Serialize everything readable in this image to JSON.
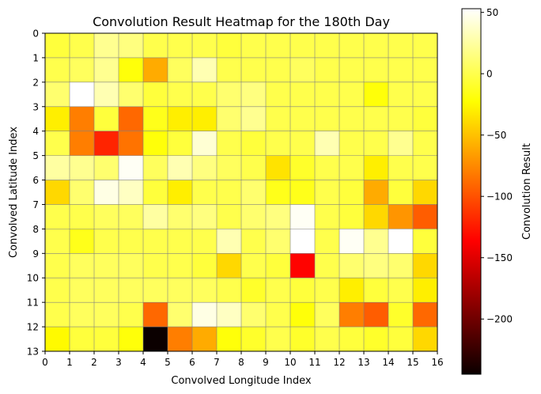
{
  "chart_data": {
    "type": "heatmap",
    "title": "Convolution Result Heatmap for the 180th Day",
    "xlabel": "Convolved Longitude Index",
    "ylabel": "Convolved Latitude Index",
    "colorbar_label": "Convolution Result",
    "colormap": "hot",
    "vmin": -245,
    "vmax": 53,
    "xlim": [
      0,
      16
    ],
    "ylim": [
      13,
      0
    ],
    "x_ticks": [
      "0",
      "1",
      "2",
      "3",
      "4",
      "5",
      "6",
      "7",
      "8",
      "9",
      "10",
      "11",
      "12",
      "13",
      "14",
      "15",
      "16"
    ],
    "y_ticks": [
      "0",
      "1",
      "2",
      "3",
      "4",
      "5",
      "6",
      "7",
      "8",
      "9",
      "10",
      "11",
      "12",
      "13"
    ],
    "colorbar_ticks": [
      {
        "value": 50,
        "label": "50"
      },
      {
        "value": 0,
        "label": "0"
      },
      {
        "value": -50,
        "label": "−50"
      },
      {
        "value": -100,
        "label": "−100"
      },
      {
        "value": -150,
        "label": "−150"
      },
      {
        "value": -200,
        "label": "−200"
      }
    ],
    "grid": true,
    "rows": [
      [
        -5,
        0,
        20,
        15,
        0,
        0,
        0,
        -5,
        0,
        0,
        0,
        0,
        0,
        0,
        0,
        0
      ],
      [
        0,
        5,
        20,
        -20,
        -60,
        5,
        30,
        0,
        0,
        0,
        5,
        0,
        0,
        0,
        0,
        0
      ],
      [
        10,
        53,
        30,
        10,
        -5,
        0,
        0,
        10,
        15,
        0,
        0,
        0,
        0,
        -20,
        0,
        0
      ],
      [
        -30,
        -80,
        -5,
        -90,
        -15,
        -30,
        -30,
        10,
        20,
        0,
        0,
        0,
        0,
        0,
        0,
        -5
      ],
      [
        0,
        -80,
        -120,
        -85,
        -20,
        -5,
        40,
        0,
        -5,
        0,
        0,
        30,
        0,
        0,
        20,
        0
      ],
      [
        25,
        20,
        10,
        50,
        5,
        30,
        15,
        5,
        0,
        -35,
        -10,
        0,
        0,
        -30,
        0,
        0
      ],
      [
        -40,
        10,
        45,
        35,
        -5,
        -30,
        0,
        0,
        10,
        -15,
        -15,
        0,
        -5,
        -60,
        -5,
        -40
      ],
      [
        0,
        0,
        5,
        5,
        25,
        10,
        15,
        0,
        10,
        15,
        50,
        0,
        -5,
        -40,
        -70,
        -95
      ],
      [
        0,
        -15,
        0,
        0,
        0,
        0,
        0,
        30,
        0,
        10,
        53,
        0,
        50,
        20,
        53,
        -5
      ],
      [
        0,
        5,
        5,
        5,
        0,
        0,
        -5,
        -40,
        0,
        -5,
        -135,
        0,
        10,
        15,
        10,
        -40
      ],
      [
        0,
        5,
        5,
        5,
        5,
        5,
        5,
        0,
        -10,
        0,
        -5,
        0,
        -30,
        -5,
        0,
        -30
      ],
      [
        0,
        5,
        5,
        0,
        -90,
        10,
        45,
        35,
        10,
        0,
        -20,
        5,
        -80,
        -95,
        -10,
        -90
      ],
      [
        -25,
        -5,
        -5,
        -20,
        -245,
        -80,
        -60,
        -20,
        -10,
        0,
        -10,
        0,
        -5,
        -10,
        -5,
        -40
      ]
    ]
  }
}
